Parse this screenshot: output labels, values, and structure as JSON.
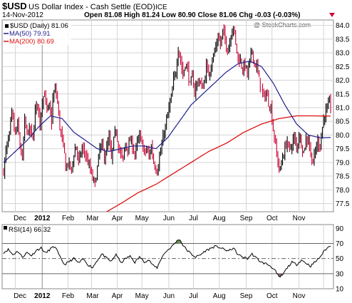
{
  "header": {
    "ticker": "$USD",
    "description": "US Dollar Index - Cash Settle (EOD)",
    "exchange": "ICE",
    "date": "14-Nov-2012",
    "ohlc": "Open 81.08  High 81.24  Low 80.90  Close 81.06  Chg -0.03 (-0.03%)",
    "watermark": "@ StockCharts.com"
  },
  "legend": {
    "main": "$USD (Daily) 81.06",
    "ma50": "MA(50) 79.91",
    "ma200": "MA(200) 80.69",
    "rsi": "RSI(14) 66.32"
  },
  "colors": {
    "up_bar": "#000000",
    "down_bar": "#cc0033",
    "ma50": "#1f1f8f",
    "ma200": "#dd1111",
    "rsi_line": "#000000",
    "rsi_overbought_fill": "#6b8e5a",
    "rsi_oversold_fill": "#8a6a6a",
    "grid": "#d4d4d4",
    "background": "#ffffff"
  },
  "chart_data": [
    {
      "type": "ohlc",
      "title": "$USD (Daily) 81.06",
      "ylim": [
        77.2,
        84.2
      ],
      "y_ticks": [
        77.5,
        78.0,
        78.5,
        79.0,
        79.5,
        80.0,
        80.5,
        81.0,
        81.5,
        82.0,
        82.5,
        83.0,
        83.5,
        84.0
      ],
      "x_tick_labels": [
        "Dec",
        "2012",
        "Feb",
        "Mar",
        "Apr",
        "May",
        "Jun",
        "Jul",
        "Aug",
        "Sep",
        "Oct",
        "Nov"
      ],
      "grid": true,
      "close_path": [
        {
          "t": 0,
          "v": 78.7
        },
        {
          "t": 2,
          "v": 79.4
        },
        {
          "t": 5,
          "v": 80.0
        },
        {
          "t": 7,
          "v": 80.8
        },
        {
          "t": 10,
          "v": 80.0
        },
        {
          "t": 12,
          "v": 80.4
        },
        {
          "t": 14,
          "v": 79.6
        },
        {
          "t": 16,
          "v": 79.1
        },
        {
          "t": 18,
          "v": 80.5
        },
        {
          "t": 20,
          "v": 80.1
        },
        {
          "t": 23,
          "v": 80.2
        },
        {
          "t": 25,
          "v": 79.8
        },
        {
          "t": 27,
          "v": 80.9
        },
        {
          "t": 29,
          "v": 81.2
        },
        {
          "t": 31,
          "v": 80.4
        },
        {
          "t": 33,
          "v": 81.3
        },
        {
          "t": 35,
          "v": 81.5
        },
        {
          "t": 37,
          "v": 80.9
        },
        {
          "t": 39,
          "v": 81.0
        },
        {
          "t": 41,
          "v": 80.5
        },
        {
          "t": 42,
          "v": 81.3
        },
        {
          "t": 44,
          "v": 81.7
        },
        {
          "t": 46,
          "v": 81.2
        },
        {
          "t": 48,
          "v": 80.3
        },
        {
          "t": 50,
          "v": 79.8
        },
        {
          "t": 52,
          "v": 79.3
        },
        {
          "t": 53,
          "v": 78.8
        },
        {
          "t": 55,
          "v": 79.0
        },
        {
          "t": 58,
          "v": 78.7
        },
        {
          "t": 60,
          "v": 79.3
        },
        {
          "t": 62,
          "v": 79.6
        },
        {
          "t": 64,
          "v": 79.0
        },
        {
          "t": 67,
          "v": 79.5
        },
        {
          "t": 69,
          "v": 79.4
        },
        {
          "t": 72,
          "v": 79.0
        },
        {
          "t": 74,
          "v": 78.7
        },
        {
          "t": 76,
          "v": 78.4
        },
        {
          "t": 78,
          "v": 78.2
        },
        {
          "t": 80,
          "v": 78.8
        },
        {
          "t": 82,
          "v": 79.5
        },
        {
          "t": 84,
          "v": 79.6
        },
        {
          "t": 86,
          "v": 79.2
        },
        {
          "t": 88,
          "v": 79.5
        },
        {
          "t": 90,
          "v": 79.9
        },
        {
          "t": 92,
          "v": 79.1
        },
        {
          "t": 94,
          "v": 79.8
        },
        {
          "t": 96,
          "v": 80.2
        },
        {
          "t": 98,
          "v": 79.6
        },
        {
          "t": 100,
          "v": 79.3
        },
        {
          "t": 102,
          "v": 79.1
        },
        {
          "t": 104,
          "v": 79.7
        },
        {
          "t": 106,
          "v": 79.5
        },
        {
          "t": 108,
          "v": 79.8
        },
        {
          "t": 110,
          "v": 79.6
        },
        {
          "t": 112,
          "v": 79.3
        },
        {
          "t": 114,
          "v": 79.7
        },
        {
          "t": 116,
          "v": 79.9
        },
        {
          "t": 118,
          "v": 79.8
        },
        {
          "t": 120,
          "v": 79.3
        },
        {
          "t": 122,
          "v": 79.5
        },
        {
          "t": 124,
          "v": 79.2
        },
        {
          "t": 126,
          "v": 79.6
        },
        {
          "t": 128,
          "v": 79.0
        },
        {
          "t": 130,
          "v": 78.8
        },
        {
          "t": 131,
          "v": 78.7
        },
        {
          "t": 133,
          "v": 79.2
        },
        {
          "t": 135,
          "v": 79.6
        },
        {
          "t": 137,
          "v": 80.1
        },
        {
          "t": 139,
          "v": 80.5
        },
        {
          "t": 141,
          "v": 81.0
        },
        {
          "t": 143,
          "v": 81.3
        },
        {
          "t": 145,
          "v": 82.0
        },
        {
          "t": 147,
          "v": 82.3
        },
        {
          "t": 149,
          "v": 83.2
        },
        {
          "t": 151,
          "v": 82.7
        },
        {
          "t": 153,
          "v": 82.2
        },
        {
          "t": 155,
          "v": 82.6
        },
        {
          "t": 157,
          "v": 82.4
        },
        {
          "t": 159,
          "v": 81.8
        },
        {
          "t": 161,
          "v": 82.1
        },
        {
          "t": 163,
          "v": 81.6
        },
        {
          "t": 165,
          "v": 81.9
        },
        {
          "t": 167,
          "v": 82.0
        },
        {
          "t": 169,
          "v": 81.7
        },
        {
          "t": 171,
          "v": 81.9
        },
        {
          "t": 173,
          "v": 82.5
        },
        {
          "t": 175,
          "v": 82.2
        },
        {
          "t": 177,
          "v": 82.6
        },
        {
          "t": 179,
          "v": 82.9
        },
        {
          "t": 181,
          "v": 83.2
        },
        {
          "t": 183,
          "v": 83.6
        },
        {
          "t": 185,
          "v": 83.3
        },
        {
          "t": 187,
          "v": 83.8
        },
        {
          "t": 189,
          "v": 83.5
        },
        {
          "t": 191,
          "v": 83.1
        },
        {
          "t": 193,
          "v": 83.4
        },
        {
          "t": 195,
          "v": 83.9
        },
        {
          "t": 196,
          "v": 84.0
        },
        {
          "t": 198,
          "v": 83.3
        },
        {
          "t": 200,
          "v": 82.8
        },
        {
          "t": 202,
          "v": 82.7
        },
        {
          "t": 204,
          "v": 82.4
        },
        {
          "t": 206,
          "v": 82.6
        },
        {
          "t": 208,
          "v": 82.2
        },
        {
          "t": 210,
          "v": 82.7
        },
        {
          "t": 212,
          "v": 83.1
        },
        {
          "t": 214,
          "v": 82.6
        },
        {
          "t": 216,
          "v": 82.5
        },
        {
          "t": 218,
          "v": 82.0
        },
        {
          "t": 220,
          "v": 81.6
        },
        {
          "t": 222,
          "v": 81.4
        },
        {
          "t": 224,
          "v": 81.5
        },
        {
          "t": 226,
          "v": 81.2
        },
        {
          "t": 228,
          "v": 81.0
        },
        {
          "t": 230,
          "v": 80.2
        },
        {
          "t": 232,
          "v": 79.6
        },
        {
          "t": 234,
          "v": 79.0
        },
        {
          "t": 236,
          "v": 78.7
        },
        {
          "t": 238,
          "v": 79.2
        },
        {
          "t": 240,
          "v": 79.5
        },
        {
          "t": 242,
          "v": 79.8
        },
        {
          "t": 244,
          "v": 79.4
        },
        {
          "t": 246,
          "v": 79.7
        },
        {
          "t": 248,
          "v": 79.9
        },
        {
          "t": 250,
          "v": 79.5
        },
        {
          "t": 252,
          "v": 80.0
        },
        {
          "t": 254,
          "v": 79.7
        },
        {
          "t": 256,
          "v": 79.4
        },
        {
          "t": 258,
          "v": 79.8
        },
        {
          "t": 260,
          "v": 79.9
        },
        {
          "t": 262,
          "v": 79.3
        },
        {
          "t": 264,
          "v": 79.0
        },
        {
          "t": 266,
          "v": 79.4
        },
        {
          "t": 268,
          "v": 79.8
        },
        {
          "t": 270,
          "v": 79.6
        },
        {
          "t": 272,
          "v": 80.3
        },
        {
          "t": 274,
          "v": 80.8
        },
        {
          "t": 276,
          "v": 80.9
        },
        {
          "t": 278,
          "v": 81.2
        },
        {
          "t": 279,
          "v": 81.06
        }
      ],
      "ma50_path": [
        {
          "t": 0,
          "v": 79.0
        },
        {
          "t": 10,
          "v": 79.4
        },
        {
          "t": 20,
          "v": 79.8
        },
        {
          "t": 30,
          "v": 80.3
        },
        {
          "t": 40,
          "v": 80.7
        },
        {
          "t": 50,
          "v": 80.6
        },
        {
          "t": 60,
          "v": 80.1
        },
        {
          "t": 70,
          "v": 79.8
        },
        {
          "t": 80,
          "v": 79.5
        },
        {
          "t": 90,
          "v": 79.4
        },
        {
          "t": 100,
          "v": 79.5
        },
        {
          "t": 110,
          "v": 79.6
        },
        {
          "t": 120,
          "v": 79.6
        },
        {
          "t": 130,
          "v": 79.5
        },
        {
          "t": 140,
          "v": 79.9
        },
        {
          "t": 150,
          "v": 80.5
        },
        {
          "t": 160,
          "v": 81.1
        },
        {
          "t": 170,
          "v": 81.5
        },
        {
          "t": 180,
          "v": 81.9
        },
        {
          "t": 190,
          "v": 82.3
        },
        {
          "t": 200,
          "v": 82.6
        },
        {
          "t": 210,
          "v": 82.7
        },
        {
          "t": 220,
          "v": 82.5
        },
        {
          "t": 230,
          "v": 81.9
        },
        {
          "t": 240,
          "v": 81.1
        },
        {
          "t": 250,
          "v": 80.4
        },
        {
          "t": 260,
          "v": 80.0
        },
        {
          "t": 270,
          "v": 79.9
        },
        {
          "t": 279,
          "v": 79.91
        }
      ],
      "ma200_path": [
        {
          "t": 88,
          "v": 77.2
        },
        {
          "t": 100,
          "v": 77.5
        },
        {
          "t": 115,
          "v": 77.9
        },
        {
          "t": 130,
          "v": 78.2
        },
        {
          "t": 145,
          "v": 78.6
        },
        {
          "t": 160,
          "v": 79.0
        },
        {
          "t": 175,
          "v": 79.4
        },
        {
          "t": 190,
          "v": 79.7
        },
        {
          "t": 205,
          "v": 80.1
        },
        {
          "t": 220,
          "v": 80.4
        },
        {
          "t": 235,
          "v": 80.6
        },
        {
          "t": 250,
          "v": 80.7
        },
        {
          "t": 265,
          "v": 80.7
        },
        {
          "t": 279,
          "v": 80.69
        }
      ]
    },
    {
      "type": "line",
      "title": "RSI(14) 66.32",
      "ylim": [
        10,
        95
      ],
      "y_ticks": [
        10,
        30,
        50,
        70,
        90
      ],
      "reference_lines": [
        30,
        50,
        70
      ],
      "x_tick_labels": [
        "Dec",
        "2012",
        "Feb",
        "Mar",
        "Apr",
        "May",
        "Jun",
        "Jul",
        "Aug",
        "Sep",
        "Oct",
        "Nov"
      ],
      "grid": true,
      "rsi_path": [
        {
          "t": 0,
          "v": 58
        },
        {
          "t": 4,
          "v": 62
        },
        {
          "t": 8,
          "v": 55
        },
        {
          "t": 12,
          "v": 60
        },
        {
          "t": 16,
          "v": 52
        },
        {
          "t": 20,
          "v": 58
        },
        {
          "t": 24,
          "v": 54
        },
        {
          "t": 28,
          "v": 61
        },
        {
          "t": 32,
          "v": 64
        },
        {
          "t": 36,
          "v": 57
        },
        {
          "t": 40,
          "v": 63
        },
        {
          "t": 44,
          "v": 66
        },
        {
          "t": 48,
          "v": 52
        },
        {
          "t": 52,
          "v": 42
        },
        {
          "t": 56,
          "v": 46
        },
        {
          "t": 60,
          "v": 50
        },
        {
          "t": 64,
          "v": 44
        },
        {
          "t": 68,
          "v": 49
        },
        {
          "t": 72,
          "v": 42
        },
        {
          "t": 76,
          "v": 38
        },
        {
          "t": 80,
          "v": 48
        },
        {
          "t": 84,
          "v": 56
        },
        {
          "t": 88,
          "v": 50
        },
        {
          "t": 92,
          "v": 46
        },
        {
          "t": 96,
          "v": 56
        },
        {
          "t": 100,
          "v": 44
        },
        {
          "t": 104,
          "v": 50
        },
        {
          "t": 108,
          "v": 53
        },
        {
          "t": 112,
          "v": 45
        },
        {
          "t": 116,
          "v": 52
        },
        {
          "t": 120,
          "v": 46
        },
        {
          "t": 124,
          "v": 48
        },
        {
          "t": 128,
          "v": 40
        },
        {
          "t": 131,
          "v": 38
        },
        {
          "t": 135,
          "v": 52
        },
        {
          "t": 139,
          "v": 60
        },
        {
          "t": 143,
          "v": 65
        },
        {
          "t": 147,
          "v": 72
        },
        {
          "t": 150,
          "v": 76
        },
        {
          "t": 153,
          "v": 68
        },
        {
          "t": 156,
          "v": 62
        },
        {
          "t": 160,
          "v": 56
        },
        {
          "t": 164,
          "v": 52
        },
        {
          "t": 168,
          "v": 55
        },
        {
          "t": 172,
          "v": 60
        },
        {
          "t": 176,
          "v": 63
        },
        {
          "t": 180,
          "v": 66
        },
        {
          "t": 184,
          "v": 65
        },
        {
          "t": 188,
          "v": 62
        },
        {
          "t": 192,
          "v": 60
        },
        {
          "t": 196,
          "v": 64
        },
        {
          "t": 200,
          "v": 55
        },
        {
          "t": 204,
          "v": 52
        },
        {
          "t": 208,
          "v": 50
        },
        {
          "t": 212,
          "v": 56
        },
        {
          "t": 216,
          "v": 50
        },
        {
          "t": 220,
          "v": 45
        },
        {
          "t": 224,
          "v": 43
        },
        {
          "t": 228,
          "v": 40
        },
        {
          "t": 232,
          "v": 33
        },
        {
          "t": 235,
          "v": 25
        },
        {
          "t": 238,
          "v": 28
        },
        {
          "t": 242,
          "v": 38
        },
        {
          "t": 246,
          "v": 45
        },
        {
          "t": 250,
          "v": 42
        },
        {
          "t": 254,
          "v": 48
        },
        {
          "t": 258,
          "v": 44
        },
        {
          "t": 262,
          "v": 40
        },
        {
          "t": 266,
          "v": 46
        },
        {
          "t": 270,
          "v": 52
        },
        {
          "t": 274,
          "v": 61
        },
        {
          "t": 277,
          "v": 65
        },
        {
          "t": 279,
          "v": 66.32
        }
      ]
    }
  ]
}
